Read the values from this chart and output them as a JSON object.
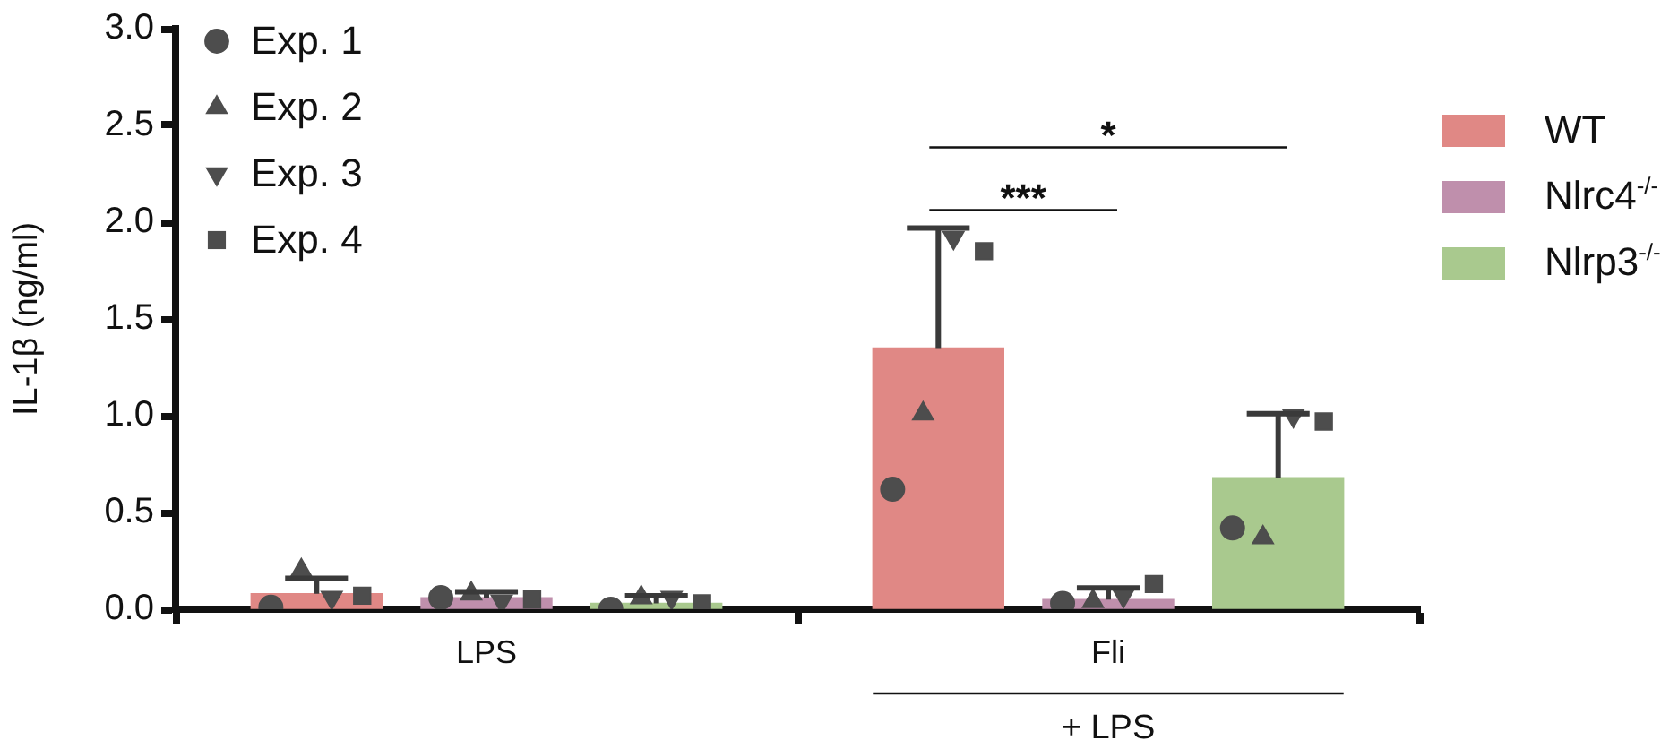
{
  "chart_data": {
    "type": "bar",
    "ylabel": "IL-1β (ng/ml)",
    "categories": [
      "LPS",
      "Fli"
    ],
    "ylim": [
      0,
      3
    ],
    "yticks": [
      {
        "value": 0,
        "label": "0.0"
      },
      {
        "value": 0.5,
        "label": "0.5"
      },
      {
        "value": 1,
        "label": "1.0"
      },
      {
        "value": 1.5,
        "label": "1.5"
      },
      {
        "value": 2,
        "label": "2.0"
      },
      {
        "value": 2.5,
        "label": "2.5"
      },
      {
        "value": 3,
        "label": "3.0"
      }
    ],
    "series": [
      {
        "name": "WT",
        "color": "#e08885",
        "values": [
          0.08,
          1.35
        ],
        "errors": [
          [
            0.08,
            0.16
          ],
          [
            1.35,
            1.97
          ]
        ]
      },
      {
        "name": "Nlrc4$^{-/-}$",
        "color": "#bf8fac",
        "values": [
          0.06,
          0.05
        ],
        "errors": [
          [
            0.06,
            0.09
          ],
          [
            0.05,
            0.11
          ]
        ]
      },
      {
        "name": "Nlrp3$^{-/-}$",
        "color": "#a9c98e",
        "values": [
          0.03,
          0.68
        ],
        "errors": [
          [
            0.03,
            0.07
          ],
          [
            0.68,
            1.01
          ]
        ]
      },
      {
        "name": "Exp. 1",
        "type": "scatter",
        "marker": "circle",
        "color": "#4d4d4d",
        "x": [
          "LPS",
          "LPS",
          "LPS",
          "Fli",
          "Fli",
          "Fli"
        ],
        "values": [
          0.01,
          0.06,
          0.0,
          0.62,
          0.03,
          0.42
        ]
      },
      {
        "name": "Exp. 2",
        "type": "scatter",
        "marker": "triangle",
        "color": "#4d4d4d",
        "x": [
          "LPS",
          "LPS",
          "LPS",
          "Fli",
          "Fli",
          "Fli"
        ],
        "values": [
          0.2,
          0.08,
          0.06,
          1.01,
          0.04,
          0.37
        ]
      },
      {
        "name": "Exp. 3",
        "type": "scatter",
        "marker": "triangle-down",
        "color": "#4d4d4d",
        "x": [
          "LPS",
          "LPS",
          "LPS",
          "Fli",
          "Fli",
          "Fli"
        ],
        "values": [
          0.06,
          0.04,
          0.06,
          1.92,
          0.07,
          1.0
        ]
      },
      {
        "name": "Exp. 4",
        "type": "scatter",
        "marker": "square",
        "color": "#4d4d4d",
        "x": [
          "LPS",
          "LPS",
          "LPS",
          "Fli",
          "Fli",
          "Fli"
        ],
        "values": [
          0.07,
          0.05,
          0.03,
          1.85,
          0.13,
          0.97
        ]
      }
    ],
    "annotations": [
      "***",
      "*",
      "+ LPS"
    ],
    "legend": "right",
    "grid": false
  }
}
